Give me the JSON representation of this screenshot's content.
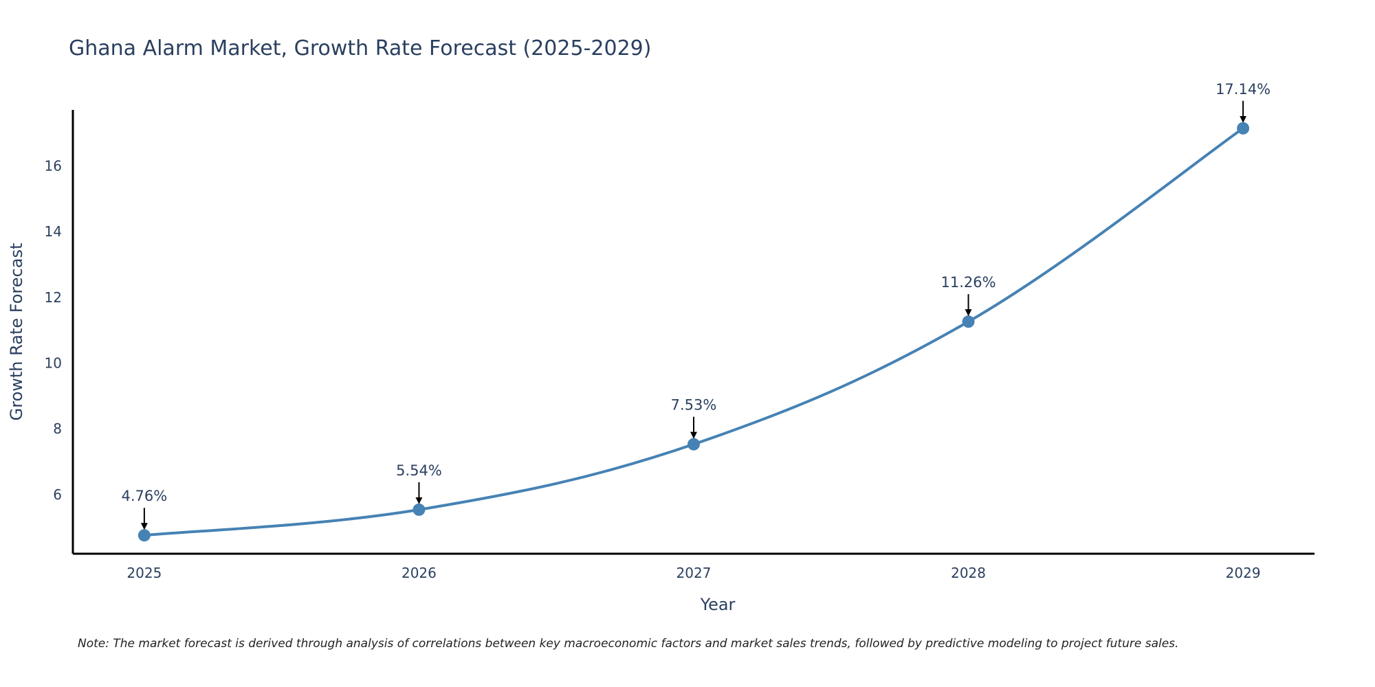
{
  "chart_data": {
    "type": "line",
    "title": "Ghana Alarm Market, Growth Rate Forecast (2025-2029)",
    "xlabel": "Year",
    "ylabel": "Growth Rate Forecast",
    "categories": [
      "2025",
      "2026",
      "2027",
      "2028",
      "2029"
    ],
    "series": [
      {
        "name": "Growth Rate Forecast",
        "values": [
          4.76,
          5.54,
          7.53,
          11.26,
          17.14
        ],
        "labels": [
          "4.76%",
          "5.54%",
          "7.53%",
          "11.26%",
          "17.14%"
        ]
      }
    ],
    "yticks": [
      6,
      8,
      10,
      12,
      14,
      16
    ],
    "ylim": [
      4.2,
      17.7
    ],
    "xlim": [
      2024.74,
      2029.26
    ],
    "grid": false,
    "line_color": "#4682b4",
    "annotation_arrows": true,
    "note": "Note: The market forecast is derived through analysis of correlations between key macroeconomic factors and market sales trends, followed by predictive modeling to project future sales."
  }
}
